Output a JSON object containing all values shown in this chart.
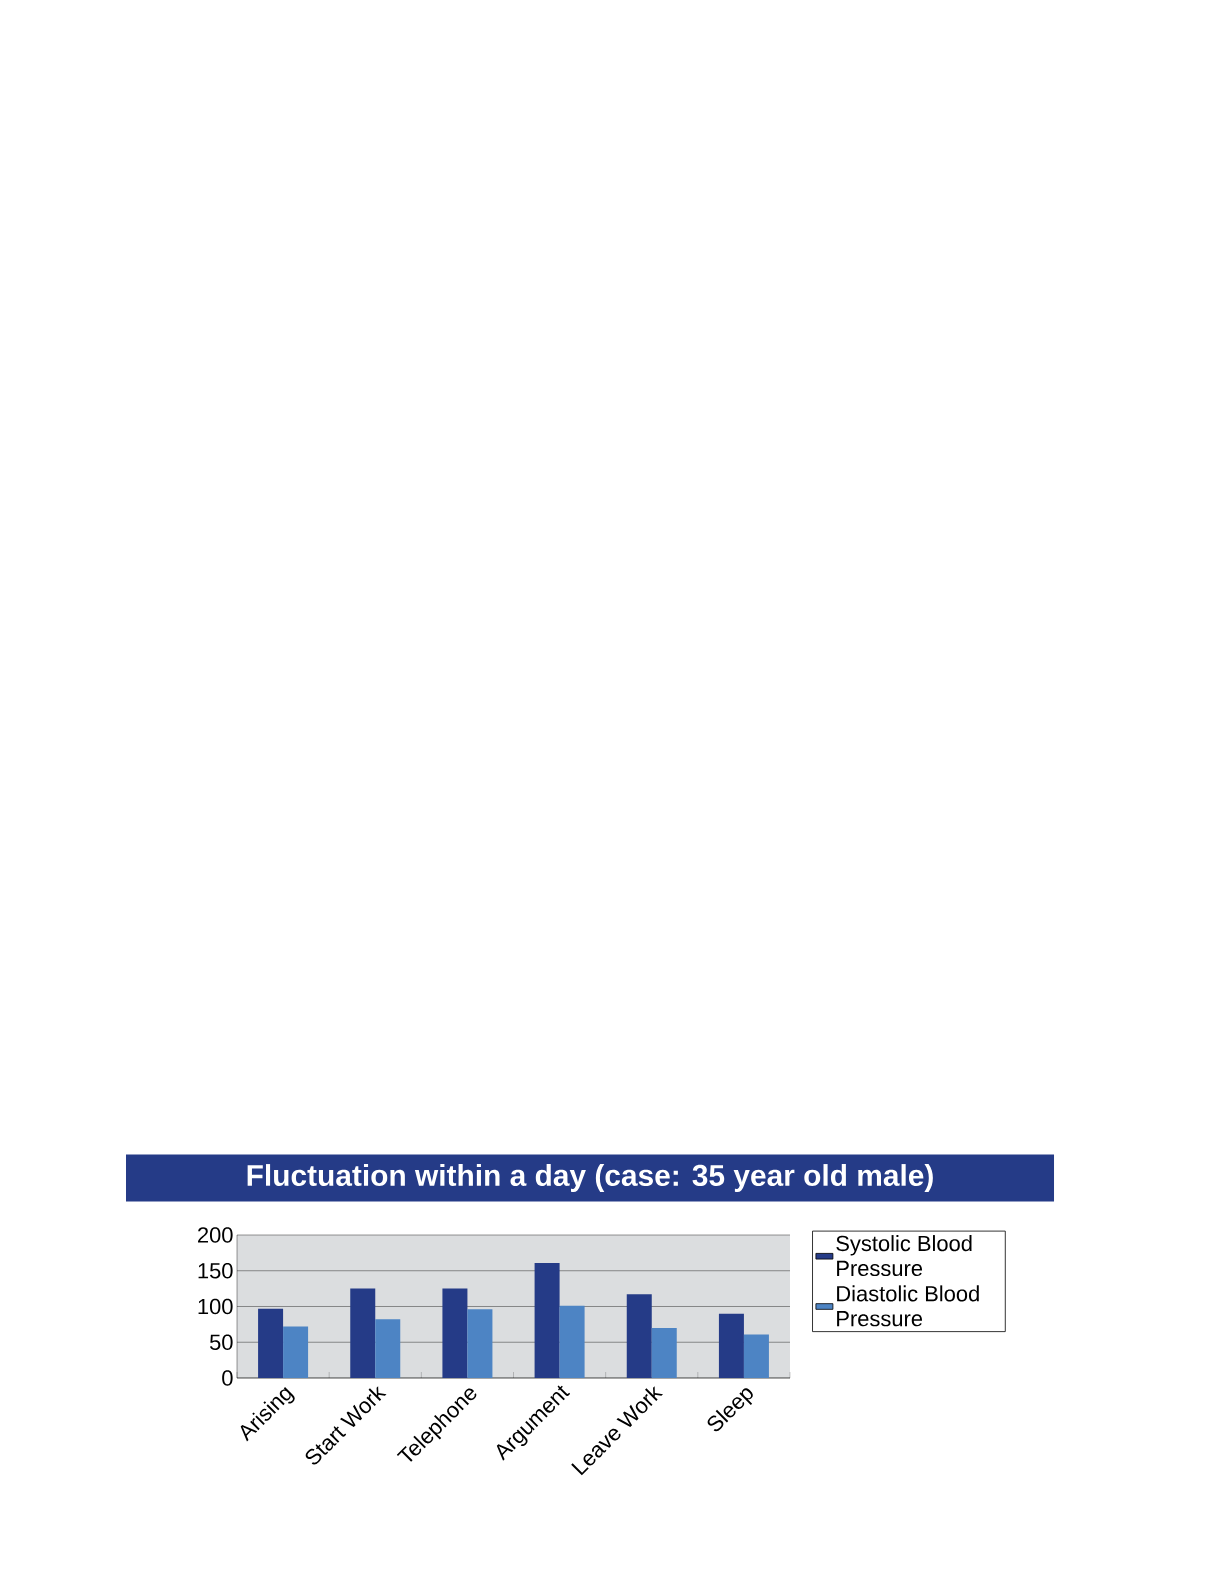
{
  "chart_data": {
    "type": "bar",
    "title": "Fluctuation within a day (case: 35 year old male)",
    "categories": [
      "Arising",
      "Start Work",
      "Telephone",
      "Argument",
      "Leave Work",
      "Sleep"
    ],
    "series": [
      {
        "name": "Systolic Blood Pressure",
        "color": "#253b87",
        "values": [
          97,
          125,
          125,
          161,
          117,
          90
        ]
      },
      {
        "name": "Diastolic Blood Pressure",
        "color": "#4d84c4",
        "values": [
          72,
          82,
          96,
          101,
          70,
          61
        ]
      }
    ],
    "ylim": [
      0,
      200
    ],
    "yticks": [
      0,
      50,
      100,
      150,
      200
    ],
    "grid": "y",
    "legend": "right"
  }
}
